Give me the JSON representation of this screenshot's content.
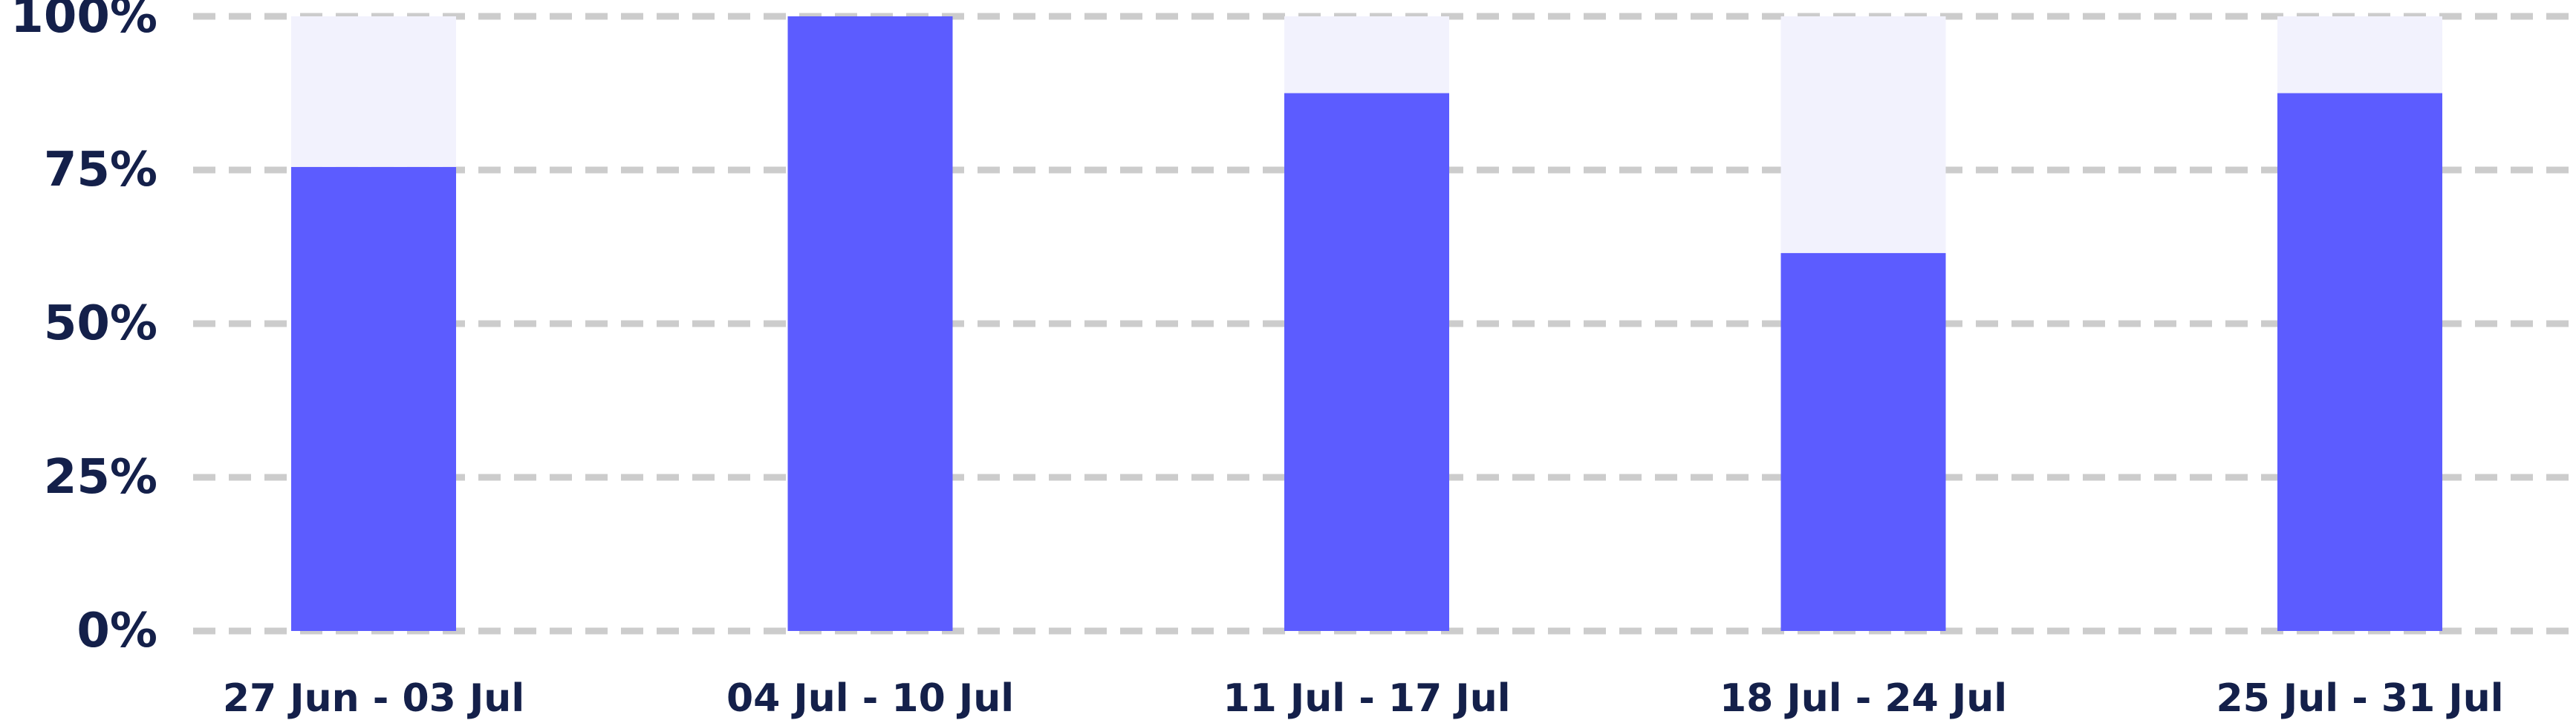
{
  "chart_data": {
    "type": "bar",
    "stacked_to_100": true,
    "categories": [
      "27 Jun - 03 Jul",
      "04 Jul - 10 Jul",
      "11 Jul - 17 Jul",
      "18 Jul - 24 Jul",
      "25 Jul - 31 Jul"
    ],
    "series": [
      {
        "values": [
          75.5,
          100,
          87.5,
          61.5,
          87.5
        ],
        "color": "#5c5cff"
      },
      {
        "values": [
          24.5,
          0,
          12.5,
          38.5,
          12.5
        ],
        "color": "#f2f2fd"
      }
    ],
    "yticks": [
      {
        "value": 0,
        "label": "0%"
      },
      {
        "value": 25,
        "label": "25%"
      },
      {
        "value": 50,
        "label": "50%"
      },
      {
        "value": 75,
        "label": "75%"
      },
      {
        "value": 100,
        "label": "100%"
      }
    ],
    "ylim": [
      0,
      100
    ],
    "grid": true,
    "grid_style": "dashed",
    "grid_color": "#cccccc",
    "label_color": "#14204a",
    "title": "",
    "xlabel": "",
    "ylabel": ""
  }
}
